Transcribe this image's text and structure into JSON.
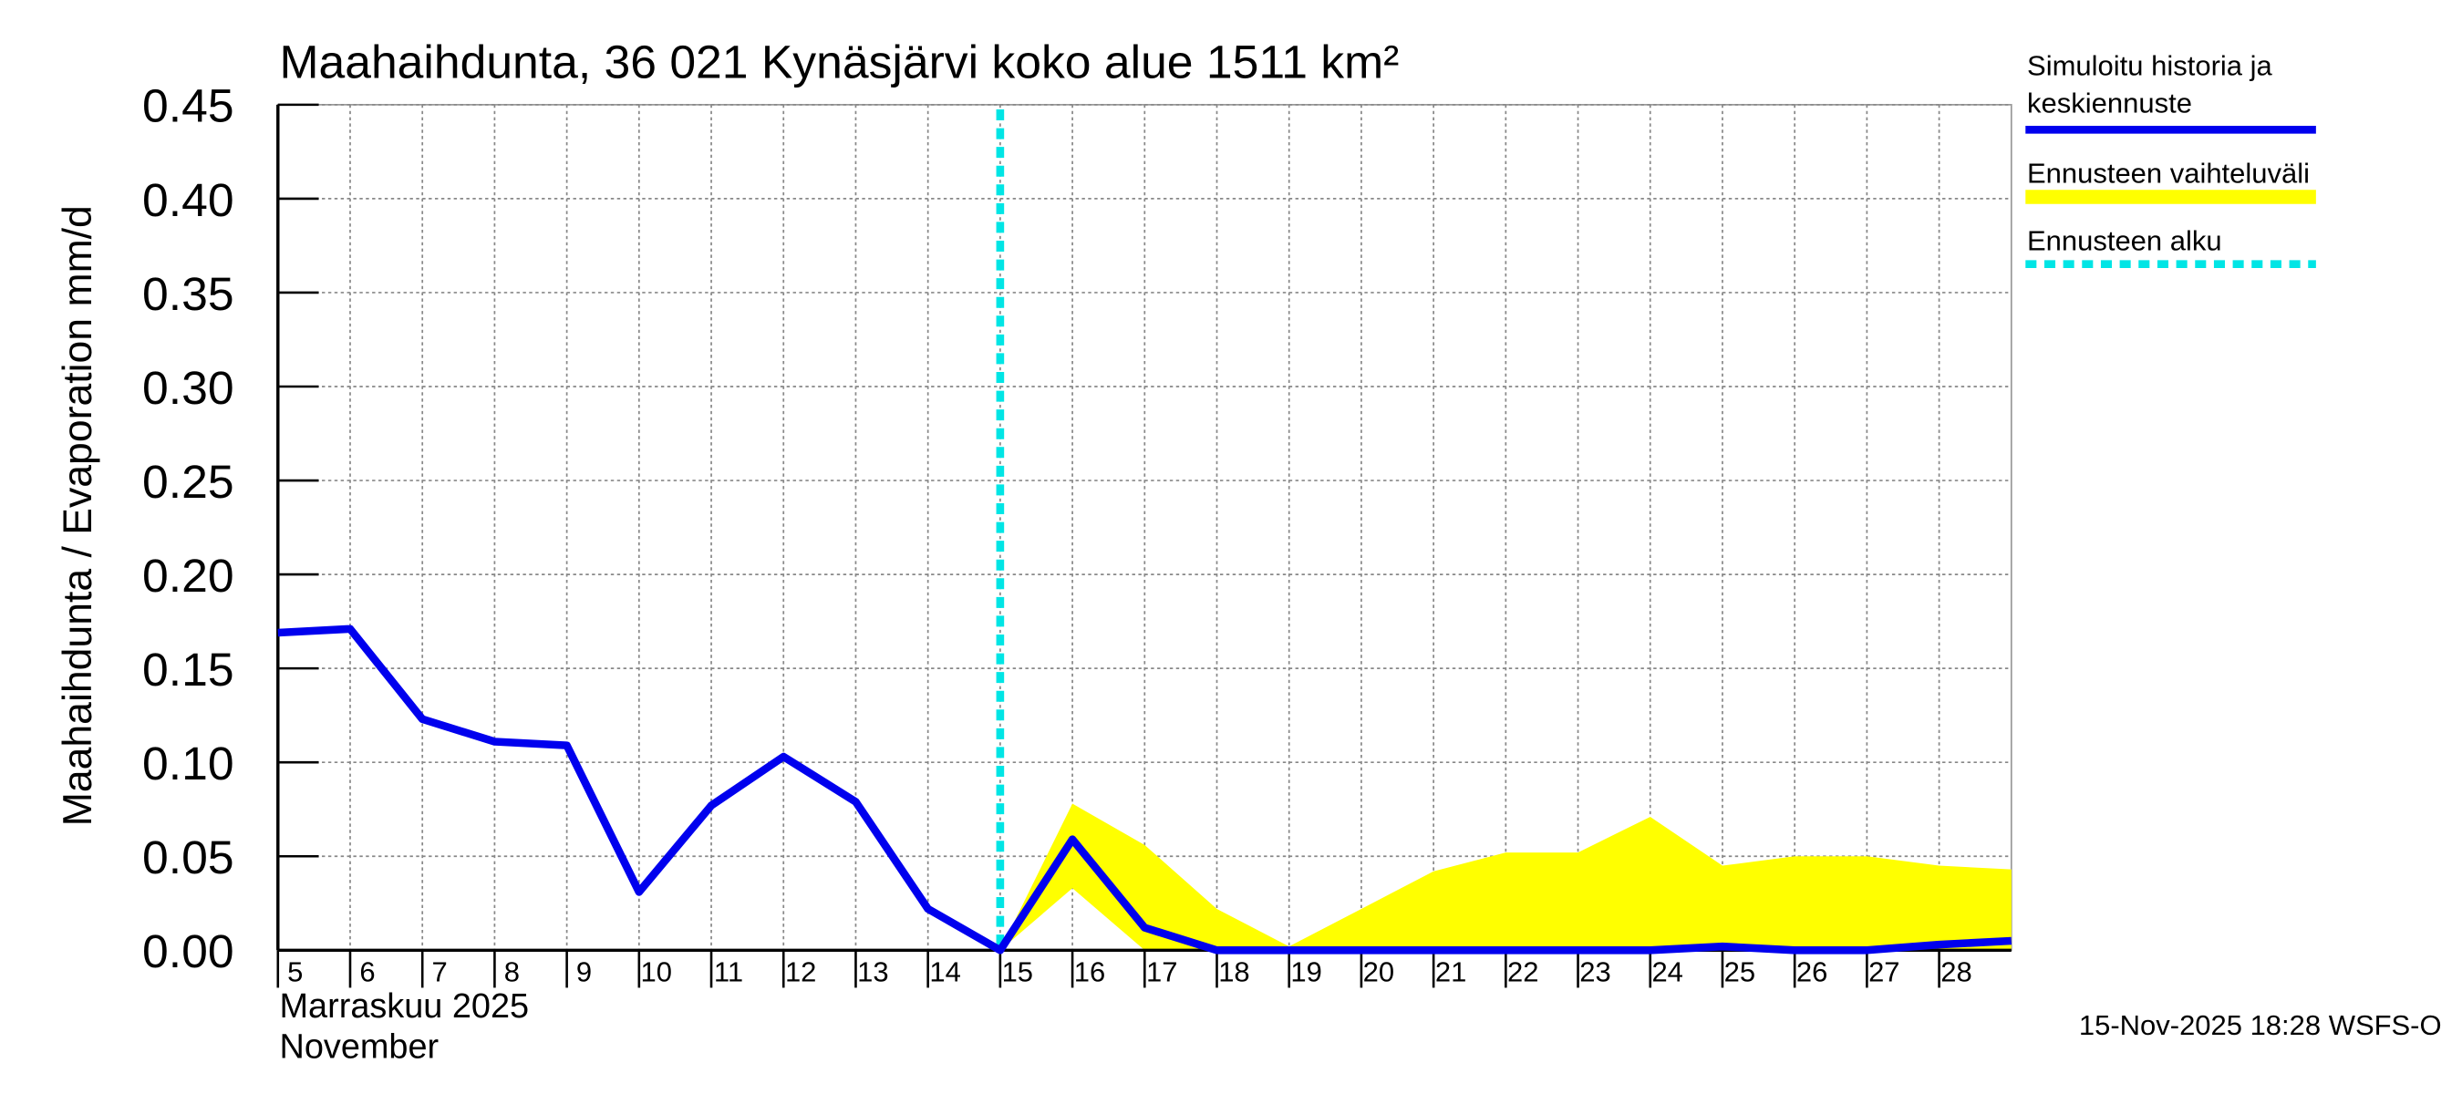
{
  "chart_data": {
    "type": "line",
    "title": "Maahaihdunta, 36 021 Kynäsjärvi koko alue 1511 km²",
    "y_label": "Maahaihdunta / Evaporation   mm/d",
    "x_label_lines": [
      "Marraskuu 2025",
      "November"
    ],
    "footer": "15-Nov-2025 18:28 WSFS-O",
    "x": [
      5,
      6,
      7,
      8,
      9,
      10,
      11,
      12,
      13,
      14,
      15,
      16,
      17,
      18,
      19,
      20,
      21,
      22,
      23,
      24,
      25,
      26,
      27,
      28,
      29
    ],
    "xlim": [
      5,
      29
    ],
    "xticks": [
      5,
      6,
      7,
      8,
      9,
      10,
      11,
      12,
      13,
      14,
      15,
      16,
      17,
      18,
      19,
      20,
      21,
      22,
      23,
      24,
      25,
      26,
      27,
      28
    ],
    "ylim": [
      0,
      0.45
    ],
    "yticks": [
      {
        "value": 0,
        "label": "0.00"
      },
      0.05,
      {
        "value": 0.1,
        "label": "0.10"
      },
      0.15,
      {
        "value": 0.2,
        "label": "0.20"
      },
      0.25,
      {
        "value": 0.3,
        "label": "0.30"
      },
      0.35,
      {
        "value": 0.4,
        "label": "0.40"
      },
      0.45
    ],
    "grid": true,
    "series": [
      {
        "name": "Simuloitu historia ja keskiennuste",
        "color": "#0000ee",
        "values": [
          0.169,
          0.171,
          0.123,
          0.111,
          0.109,
          0.031,
          0.077,
          0.103,
          0.079,
          0.022,
          0,
          0.059,
          0.012,
          0,
          0,
          0,
          0,
          0,
          0,
          0,
          0.002,
          0,
          0,
          0.003,
          0.005
        ]
      }
    ],
    "band": {
      "name": "Ennusteen vaihteluväli",
      "color": "#ffff00",
      "x": [
        15,
        16,
        17,
        18,
        19,
        20,
        21,
        22,
        23,
        24,
        25,
        26,
        27,
        28,
        29
      ],
      "upper": [
        0,
        0.078,
        0.056,
        0.022,
        0.002,
        0.022,
        0.042,
        0.052,
        0.052,
        0.071,
        0.045,
        0.05,
        0.05,
        0.045,
        0.043
      ],
      "lower": [
        0,
        0.033,
        0,
        0,
        0,
        0,
        0,
        0,
        0,
        0,
        0,
        0,
        0,
        0,
        0
      ]
    },
    "forecast_start": {
      "name": "Ennusteen alku",
      "color": "#00e5e5",
      "x": 15
    }
  }
}
